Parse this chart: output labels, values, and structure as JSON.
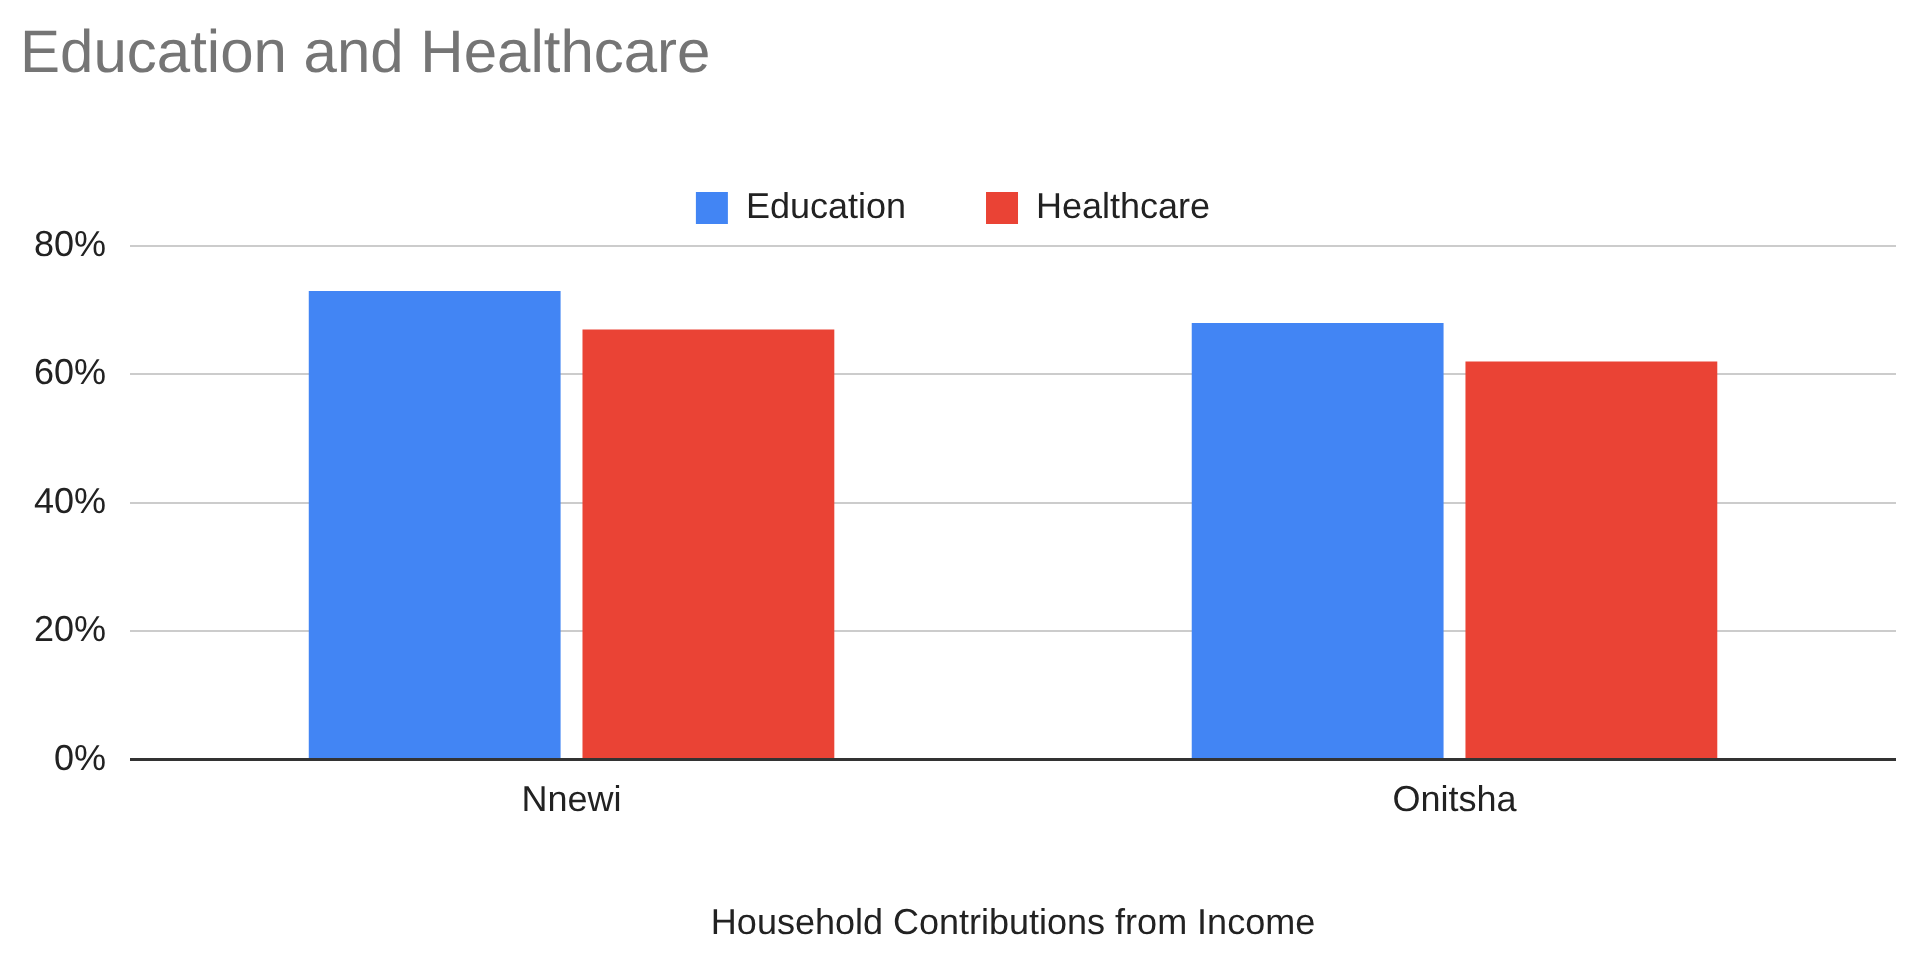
{
  "chart_data": {
    "type": "bar",
    "title": "Education and Healthcare",
    "xlabel": "Household Contributions from Income",
    "categories": [
      "Nnewi",
      "Onitsha"
    ],
    "series": [
      {
        "name": "Education",
        "color": "#4285f4",
        "values": [
          73,
          68
        ]
      },
      {
        "name": "Healthcare",
        "color": "#ea4335",
        "values": [
          67,
          62
        ]
      }
    ],
    "ylim": [
      0,
      80
    ],
    "yticks": [
      {
        "value": 0,
        "label": "0%"
      },
      {
        "value": 20,
        "label": "20%"
      },
      {
        "value": 40,
        "label": "40%"
      },
      {
        "value": 60,
        "label": "60%"
      },
      {
        "value": 80,
        "label": "80%"
      }
    ],
    "grid": "y",
    "legend": "top"
  }
}
